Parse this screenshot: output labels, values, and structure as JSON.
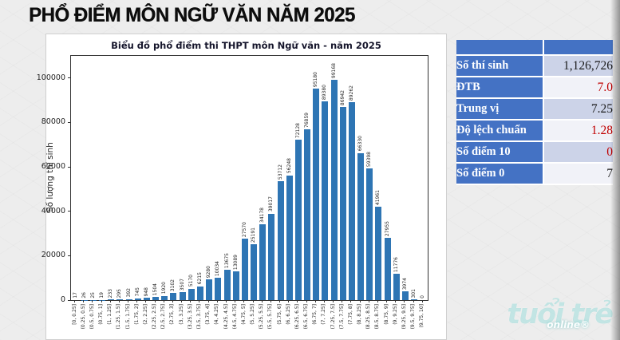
{
  "page": {
    "title": "PHỔ ĐIỂM MÔN NGỮ VĂN NĂM 2025",
    "watermark": {
      "brand": "tuổi trẻ",
      "sub": "online®"
    }
  },
  "chart_data": {
    "type": "bar",
    "title": "Biểu đồ phổ điểm thi THPT môn Ngữ văn - năm 2025",
    "xlabel": "",
    "ylabel": "Số lượng thí sinh",
    "bar_color": "#2e75b4",
    "grid": false,
    "legend": "none",
    "ylim": [
      0,
      110000
    ],
    "yticks": [
      0,
      20000,
      40000,
      60000,
      80000,
      100000
    ],
    "categories": [
      "[0, 0.25]",
      "(0.25, 0.5]",
      "(0.5, 0.75]",
      "(0.75, 1]",
      "(1, 1.25]",
      "(1.25, 1.5]",
      "(1.5, 1.75]",
      "(1.75, 2]",
      "(2, 2.25]",
      "(2.25, 2.5]",
      "(2.5, 2.75]",
      "(2.75, 3]",
      "(3, 3.25]",
      "(3.25, 3.5]",
      "(3.5, 3.75]",
      "(3.75, 4]",
      "(4, 4.25]",
      "(4.25, 4.5]",
      "(4.5, 4.75]",
      "(4.75, 5]",
      "(5, 5.25]",
      "(5.25, 5.5]",
      "(5.5, 5.75]",
      "(5.75, 6]",
      "(6, 6.25]",
      "(6.25, 6.5]",
      "(6.5, 6.75]",
      "(6.75, 7]",
      "(7, 7.25]",
      "(7.25, 7.5]",
      "(7.5, 7.75]",
      "(7.75, 8]",
      "(8, 8.25]",
      "(8.25, 8.5]",
      "(8.5, 8.75]",
      "(8.75, 9]",
      "(9, 9.25]",
      "(9.25, 9.5]",
      "(9.5, 9.75]",
      "(9.75, 10]"
    ],
    "values": [
      17,
      26,
      25,
      19,
      233,
      295,
      392,
      745,
      948,
      1504,
      1920,
      3102,
      3507,
      5170,
      6215,
      9280,
      10034,
      13675,
      13089,
      27570,
      25191,
      34178,
      39017,
      53712,
      56248,
      72128,
      76859,
      95180,
      89380,
      99168,
      86942,
      89262,
      66330,
      59398,
      41961,
      27955,
      11776,
      3974,
      301,
      0
    ]
  },
  "stats_table": {
    "header_color": "#4472c4",
    "rows": [
      {
        "label": "Số thí sinh",
        "value": "1,126,726",
        "value_color": "#1a1a1a"
      },
      {
        "label": "ĐTB",
        "value": "7.0",
        "value_color": "#c00000"
      },
      {
        "label": "Trung vị",
        "value": "7.25",
        "value_color": "#1a1a1a"
      },
      {
        "label": "Độ lệch chuẩn",
        "value": "1.28",
        "value_color": "#c00000"
      },
      {
        "label": "Số điểm 10",
        "value": "0",
        "value_color": "#c00000"
      },
      {
        "label": "Số điểm 0",
        "value": "7",
        "value_color": "#1a1a1a"
      }
    ]
  }
}
